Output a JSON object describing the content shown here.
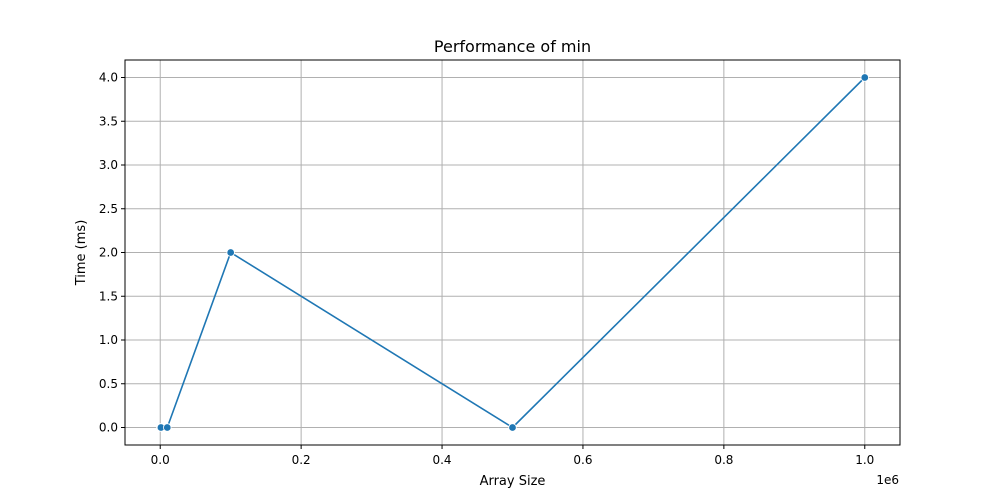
{
  "chart_data": {
    "type": "line",
    "title": "Performance of min",
    "xlabel": "Array Size",
    "ylabel": "Time (ms)",
    "x_offset_label": "1e6",
    "x": [
      100,
      1000,
      10000,
      100000,
      500000,
      1000000
    ],
    "series": [
      {
        "values": [
          0.0,
          0.0,
          0.0,
          2.0,
          0.0,
          4.0
        ],
        "color": "#1f77b4",
        "marker": "circle"
      }
    ],
    "xlim": [
      -50000,
      1050000
    ],
    "ylim": [
      -0.2,
      4.2
    ],
    "xticks": [
      0,
      200000,
      400000,
      600000,
      800000,
      1000000
    ],
    "xtick_labels": [
      "0.0",
      "0.2",
      "0.4",
      "0.6",
      "0.8",
      "1.0"
    ],
    "yticks": [
      0.0,
      0.5,
      1.0,
      1.5,
      2.0,
      2.5,
      3.0,
      3.5,
      4.0
    ],
    "ytick_labels": [
      "0.0",
      "0.5",
      "1.0",
      "1.5",
      "2.0",
      "2.5",
      "3.0",
      "3.5",
      "4.0"
    ],
    "grid": true,
    "legend": "none"
  }
}
